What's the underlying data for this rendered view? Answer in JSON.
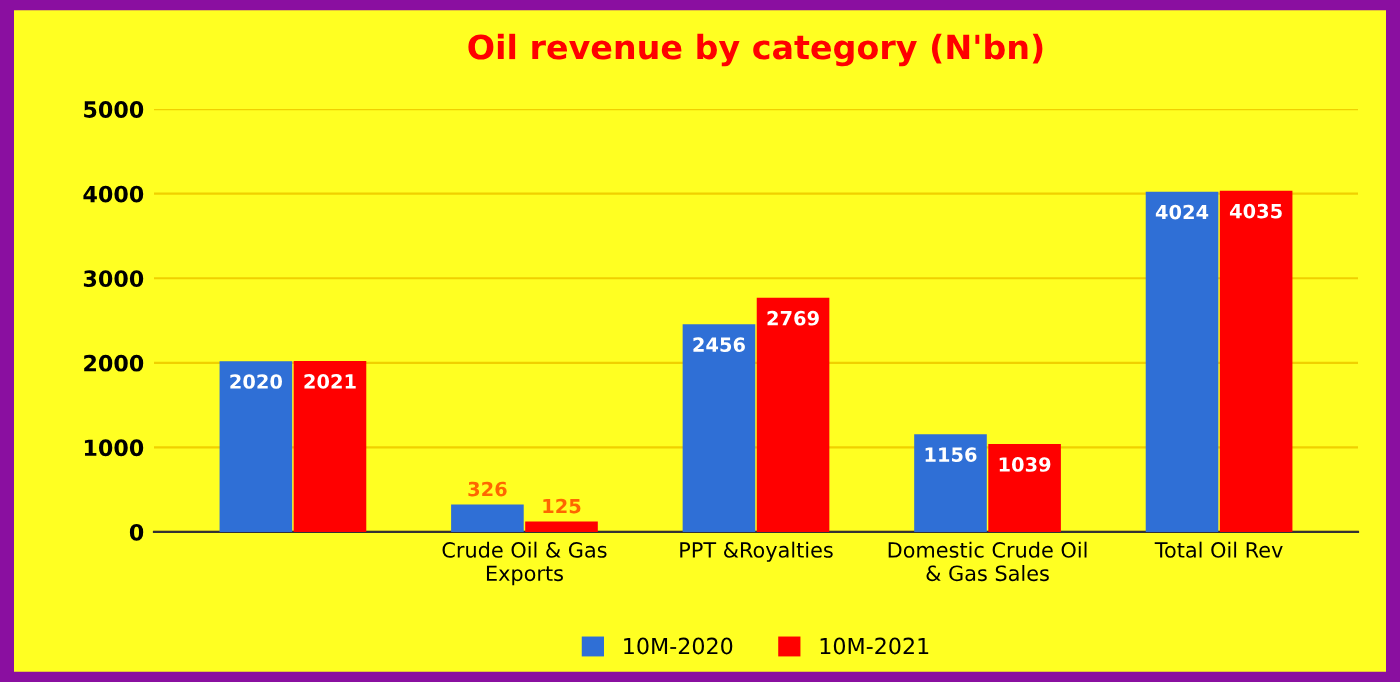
{
  "chart_data": {
    "type": "bar",
    "title": "Oil revenue by category (N'bn)",
    "categories": [
      null,
      "Crude Oil & Gas\nExports",
      "PPT &Royalties",
      "Domestic Crude Oil\n& Gas Sales",
      "Total Oil Rev"
    ],
    "series": [
      {
        "name": "10M-2020",
        "color": "#2f6fd6",
        "values": [
          2020,
          326,
          2456,
          1156,
          4024
        ]
      },
      {
        "name": "10M-2021",
        "color": "#ff0000",
        "values": [
          2021,
          125,
          2769,
          1039,
          4035
        ]
      }
    ],
    "ylim": [
      0,
      5000
    ],
    "yticks": [
      0,
      1000,
      2000,
      3000,
      4000,
      5000
    ],
    "grid": "y",
    "legend": "bottom",
    "data_labels": true
  }
}
